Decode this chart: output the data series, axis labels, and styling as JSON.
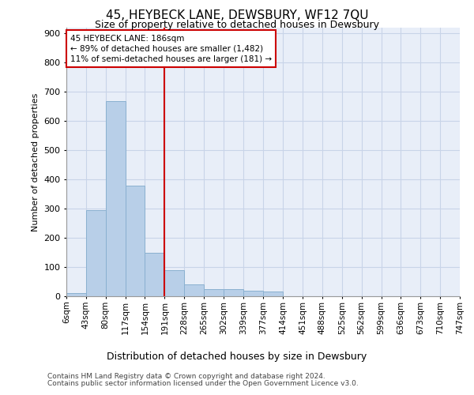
{
  "title": "45, HEYBECK LANE, DEWSBURY, WF12 7QU",
  "subtitle": "Size of property relative to detached houses in Dewsbury",
  "xlabel": "Distribution of detached houses by size in Dewsbury",
  "ylabel": "Number of detached properties",
  "bin_edges": [
    6,
    43,
    80,
    117,
    154,
    191,
    228,
    265,
    302,
    339,
    377,
    414,
    451,
    488,
    525,
    562,
    599,
    636,
    673,
    710,
    747
  ],
  "bin_labels": [
    "6sqm",
    "43sqm",
    "80sqm",
    "117sqm",
    "154sqm",
    "191sqm",
    "228sqm",
    "265sqm",
    "302sqm",
    "339sqm",
    "377sqm",
    "414sqm",
    "451sqm",
    "488sqm",
    "525sqm",
    "562sqm",
    "599sqm",
    "636sqm",
    "673sqm",
    "710sqm",
    "747sqm"
  ],
  "bar_values": [
    10,
    295,
    668,
    380,
    150,
    90,
    40,
    25,
    25,
    20,
    15,
    0,
    0,
    0,
    0,
    0,
    0,
    0,
    0,
    0
  ],
  "bar_color": "#b8cfe8",
  "bar_edge_color": "#8ab0d0",
  "grid_color": "#c8d4e8",
  "vline_x": 191,
  "vline_color": "#cc0000",
  "annotation_text": "45 HEYBECK LANE: 186sqm\n← 89% of detached houses are smaller (1,482)\n11% of semi-detached houses are larger (181) →",
  "annotation_box_color": "#ffffff",
  "annotation_box_edge": "#cc0000",
  "ylim": [
    0,
    920
  ],
  "yticks": [
    0,
    100,
    200,
    300,
    400,
    500,
    600,
    700,
    800,
    900
  ],
  "footnote1": "Contains HM Land Registry data © Crown copyright and database right 2024.",
  "footnote2": "Contains public sector information licensed under the Open Government Licence v3.0.",
  "bg_color": "#e8eef8",
  "title_fontsize": 11,
  "subtitle_fontsize": 9,
  "ylabel_fontsize": 8,
  "xlabel_fontsize": 9,
  "tick_fontsize": 7.5,
  "annotation_fontsize": 7.5,
  "footnote_fontsize": 6.5
}
